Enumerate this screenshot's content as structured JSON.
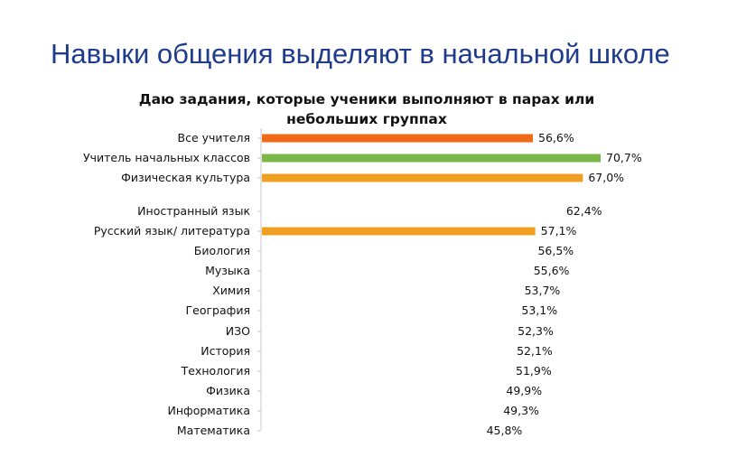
{
  "slide": {
    "title": "Навыки общения выделяют в начальной школе"
  },
  "chart_data": {
    "type": "bar",
    "orientation": "horizontal",
    "title_lines": [
      "Даю задания, которые ученики выполняют в парах или",
      "небольших группах"
    ],
    "categories": [
      "Все учителя",
      "Учитель начальных классов",
      "Физическая культура",
      "Иностранный язык",
      "Русский язык/ литература",
      "Биология",
      "Музыка",
      "Химия",
      "География",
      "ИЗО",
      "История",
      "Технология",
      "Физика",
      "Информатика",
      "Математика"
    ],
    "values": [
      56.6,
      70.7,
      67.0,
      62.4,
      57.1,
      56.5,
      55.6,
      53.7,
      53.1,
      52.3,
      52.1,
      51.9,
      49.9,
      49.3,
      45.8
    ],
    "value_labels": [
      "56,6%",
      "70,7%",
      "67,0%",
      "62,4%",
      "57,1%",
      "56,5%",
      "55,6%",
      "53,7%",
      "53,1%",
      "52,3%",
      "52,1%",
      "51,9%",
      "49,9%",
      "49,3%",
      "45,8%"
    ],
    "visible_bars": [
      true,
      true,
      true,
      false,
      true,
      false,
      false,
      false,
      false,
      false,
      false,
      false,
      false,
      false,
      false
    ],
    "bar_colors": [
      "#f06a1a",
      "#7ab648",
      "#f0a020",
      "#f0a020",
      "#f0a020",
      "#f0a020",
      "#f0a020",
      "#f0a020",
      "#f0a020",
      "#f0a020",
      "#f0a020",
      "#f0a020",
      "#f0a020",
      "#f0a020",
      "#f0a020"
    ],
    "xlim": [
      0,
      75
    ],
    "grid": false,
    "legend": "none"
  }
}
